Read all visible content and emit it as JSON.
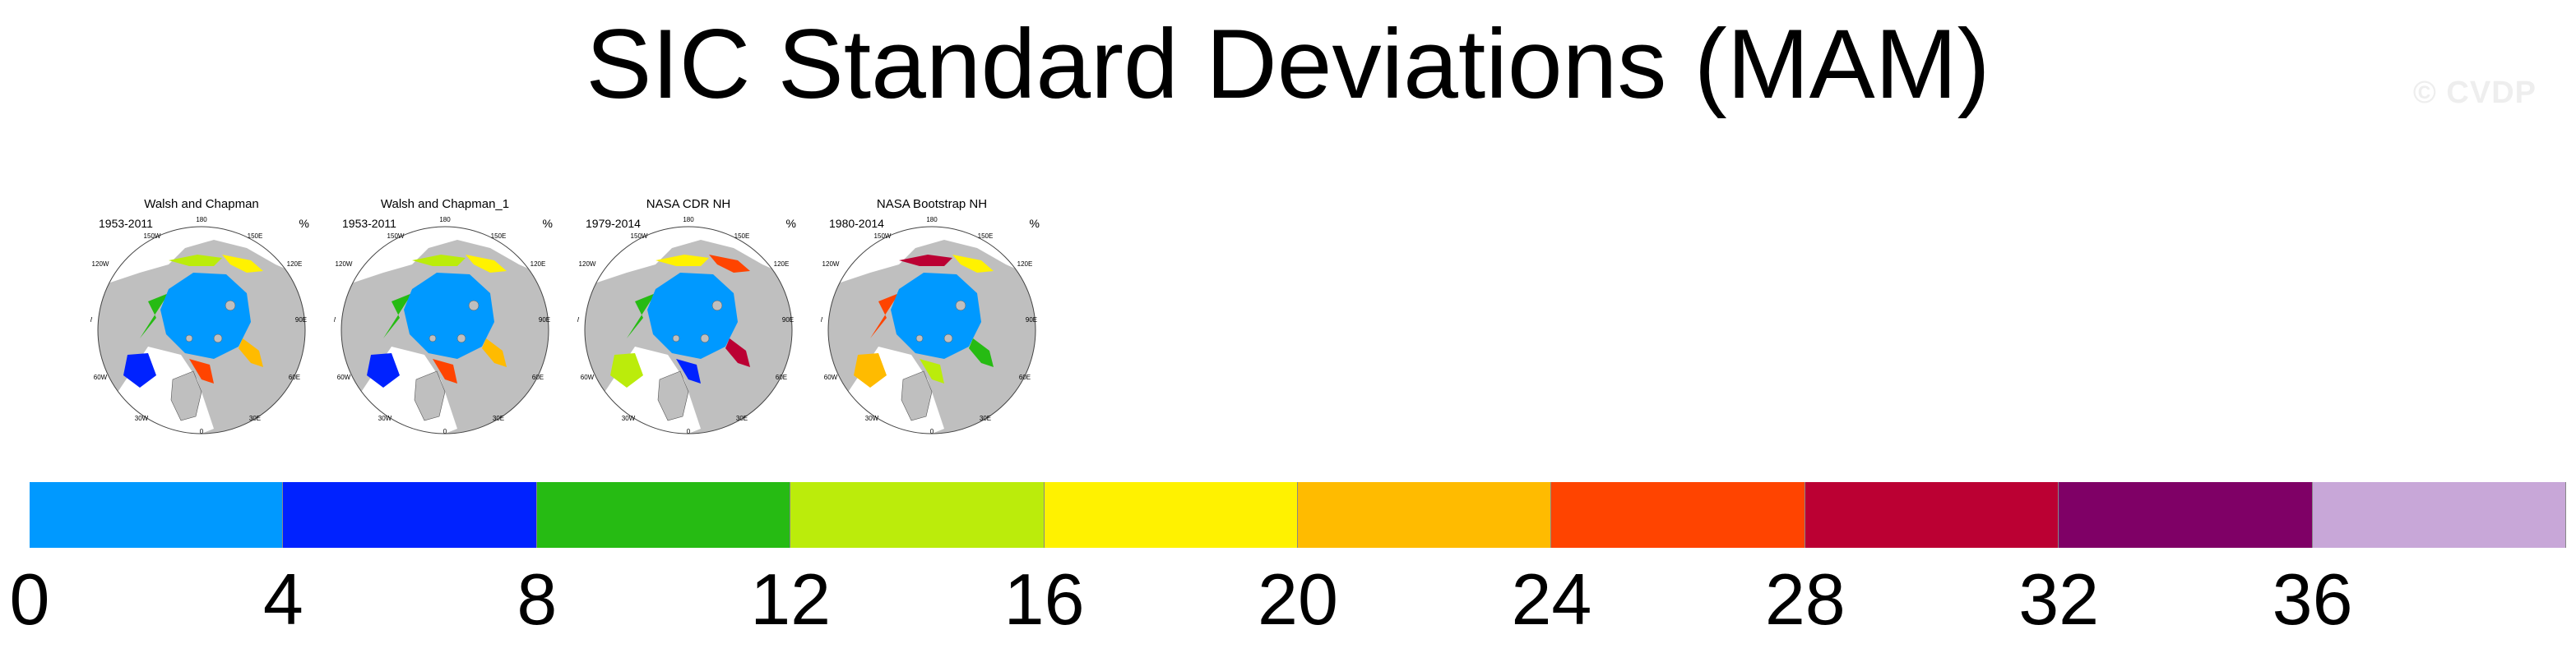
{
  "figure": {
    "title": "SIC Standard Deviations (MAM)",
    "watermark": "© CVDP"
  },
  "panels": [
    {
      "title": "Walsh and Chapman",
      "years": "1953-2011",
      "unit": "%",
      "style": "wc"
    },
    {
      "title": "Walsh and Chapman_1",
      "years": "1953-2011",
      "unit": "%",
      "style": "wc"
    },
    {
      "title": "NASA CDR NH",
      "years": "1979-2014",
      "unit": "%",
      "style": "cdr"
    },
    {
      "title": "NASA Bootstrap NH",
      "years": "1980-2014",
      "unit": "%",
      "style": "bs"
    }
  ],
  "map_labels": {
    "top": "180",
    "upper_left": "150W",
    "upper_right": "150E",
    "left_upper": "120W",
    "right_upper": "120E",
    "left": "90W",
    "right": "90E",
    "left_lower": "60W",
    "right_lower": "60E",
    "lower_left": "30W",
    "lower_right": "30E",
    "bottom": "0"
  },
  "colorbar": {
    "colors": [
      "#0099ff",
      "#0022ff",
      "#26bb13",
      "#bbec0b",
      "#fff200",
      "#ffbb00",
      "#ff4400",
      "#bb0033",
      "#7f0066",
      "#c8a7d8"
    ],
    "ticks": [
      "0",
      "4",
      "8",
      "12",
      "16",
      "20",
      "24",
      "28",
      "32",
      "36"
    ]
  }
}
